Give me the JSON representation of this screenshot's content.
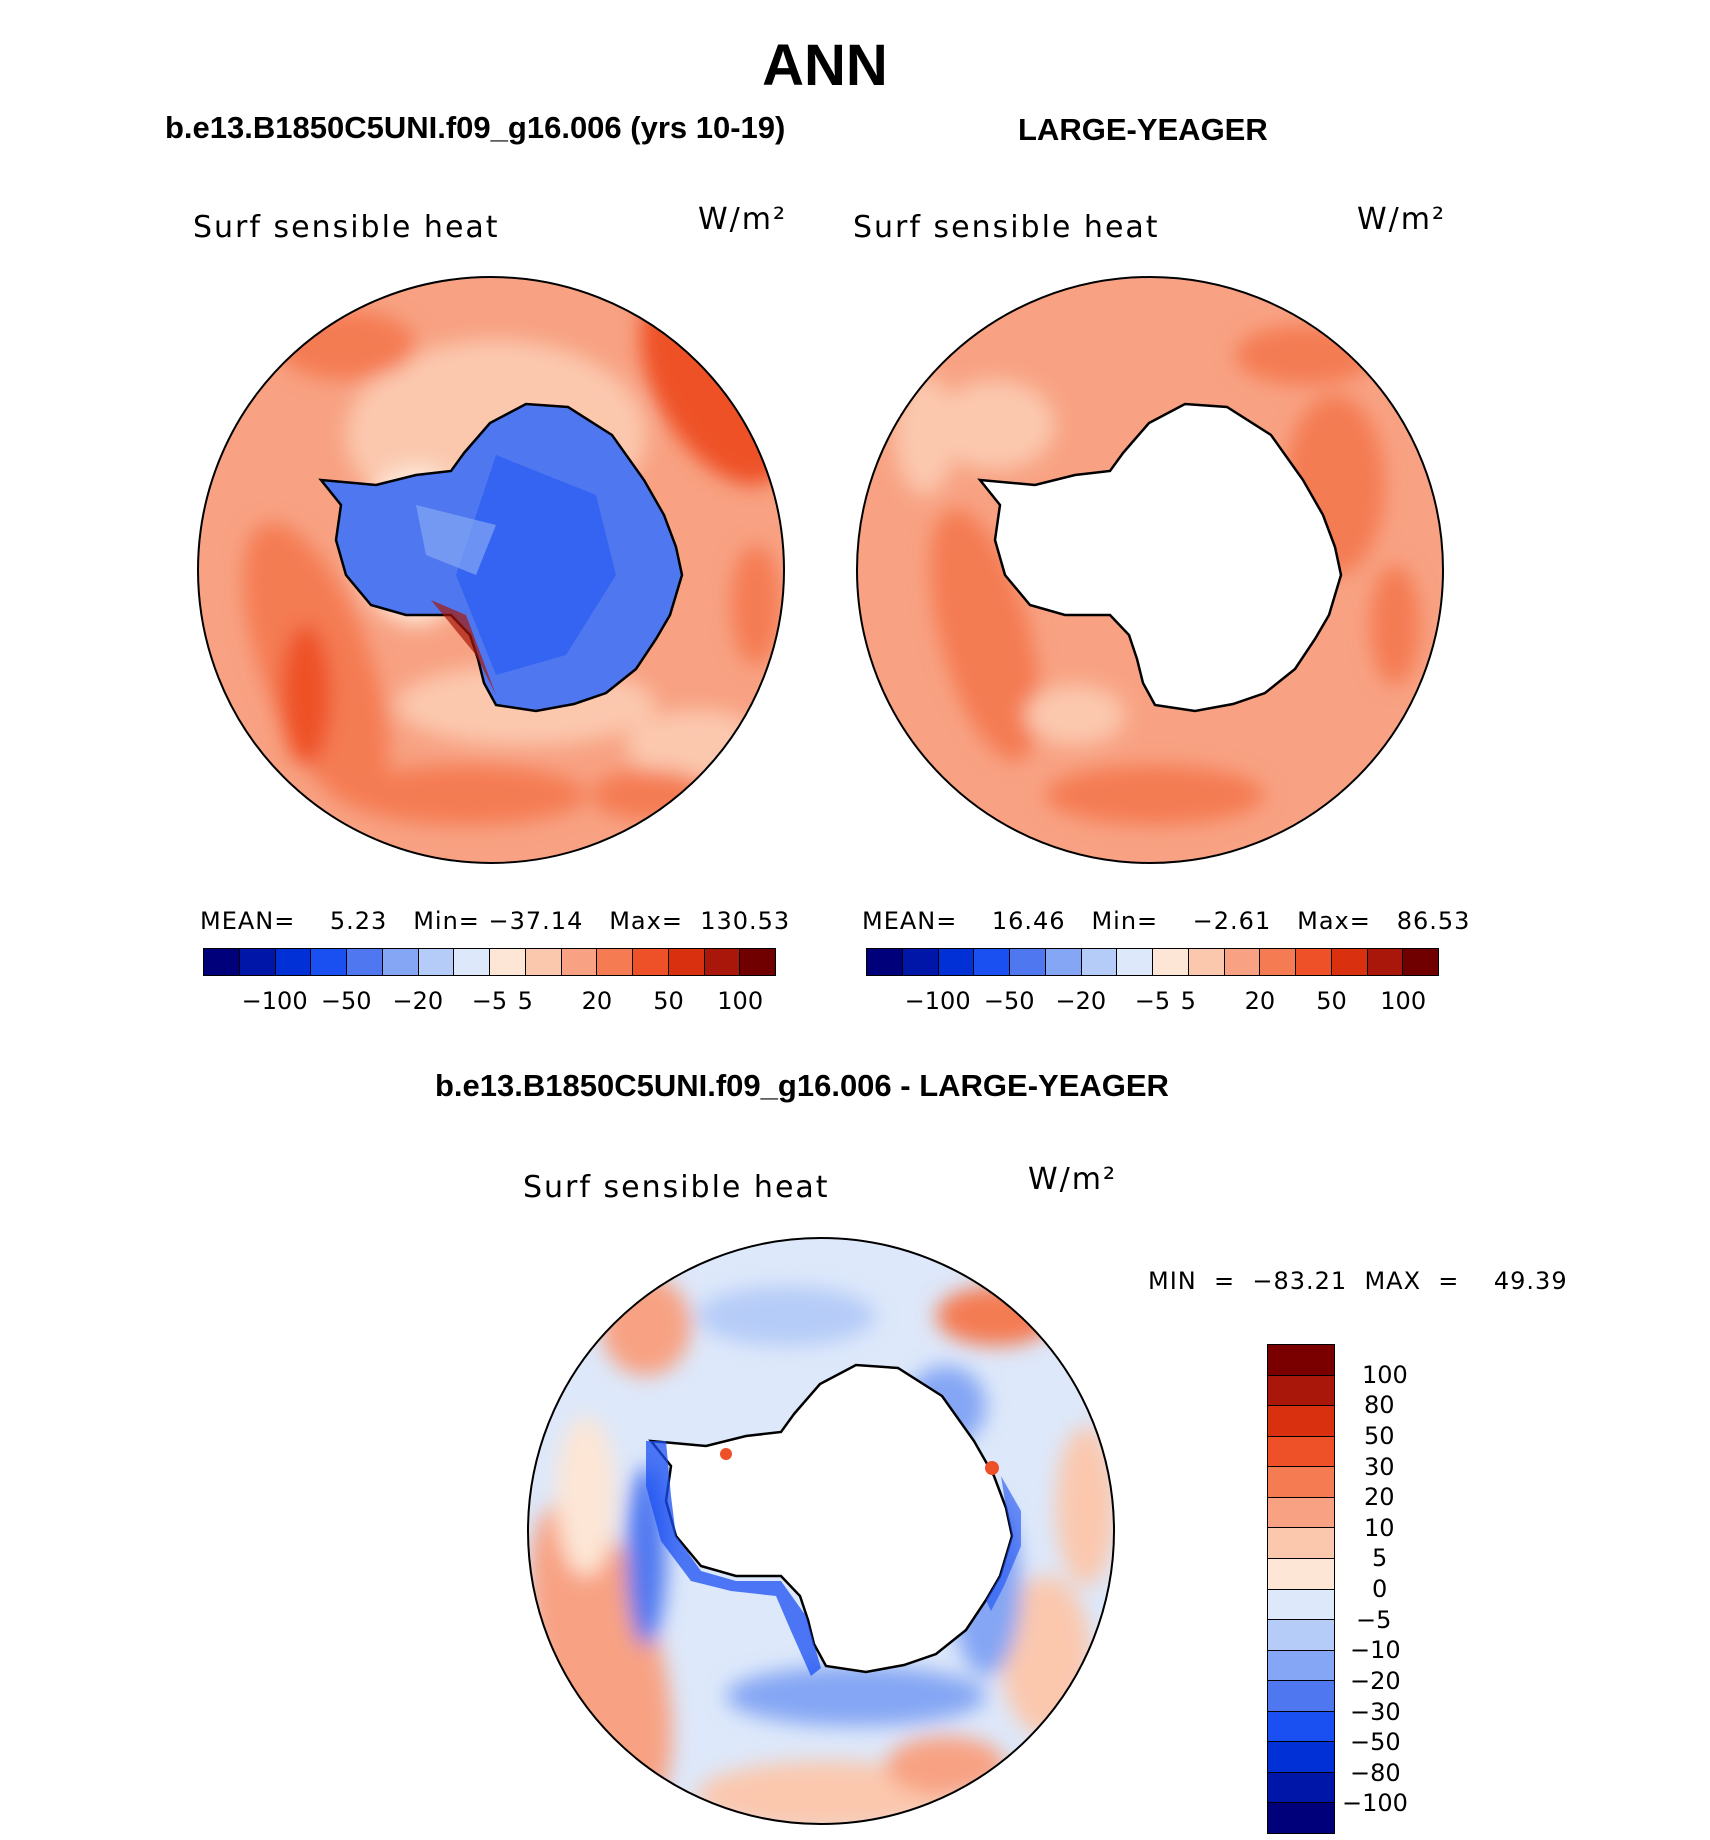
{
  "figure": {
    "season": "ANN",
    "case_title": "b.e13.B1850C5UNI.f09_g16.006 (yrs 10-19)",
    "obs_title": "LARGE-YEAGER",
    "diff_title": "b.e13.B1850C5UNI.f09_g16.006 - LARGE-YEAGER",
    "variable": "Surf sensible heat",
    "units": "W/m²"
  },
  "panels": [
    {
      "id": "model",
      "stats": "MEAN=    5.23   Min= −37.14   Max=  130.53"
    },
    {
      "id": "obs",
      "stats": "MEAN=    16.46   Min=    −2.61   Max=   86.53"
    },
    {
      "id": "diff",
      "stats": "MIN  =  −83.21  MAX  =    49.39"
    }
  ],
  "top_colorbar": {
    "colors": [
      "#00007a",
      "#0016a8",
      "#0030d6",
      "#1a4ff2",
      "#4f78f0",
      "#84a6f4",
      "#b6ccf8",
      "#dde8fa",
      "#fde6d6",
      "#fbc8ae",
      "#f8a283",
      "#f47b52",
      "#ee5128",
      "#d93010",
      "#a8170a",
      "#700000"
    ],
    "tick_labels": [
      "−100",
      "−50",
      "−20",
      "−5",
      "5",
      "20",
      "50",
      "100"
    ]
  },
  "diff_colorbar": {
    "colors": [
      "#7a0000",
      "#a8170a",
      "#d93010",
      "#ee5128",
      "#f47b52",
      "#f8a283",
      "#fbc8ae",
      "#fde6d6",
      "#dde8fa",
      "#b6ccf8",
      "#84a6f4",
      "#4f78f0",
      "#1a4ff2",
      "#0030d6",
      "#0016a8",
      "#00007a"
    ],
    "tick_labels": [
      "100",
      "80",
      "50",
      "30",
      "20",
      "10",
      "5",
      "0",
      "−5",
      "−10",
      "−20",
      "−30",
      "−50",
      "−80",
      "−100"
    ]
  }
}
